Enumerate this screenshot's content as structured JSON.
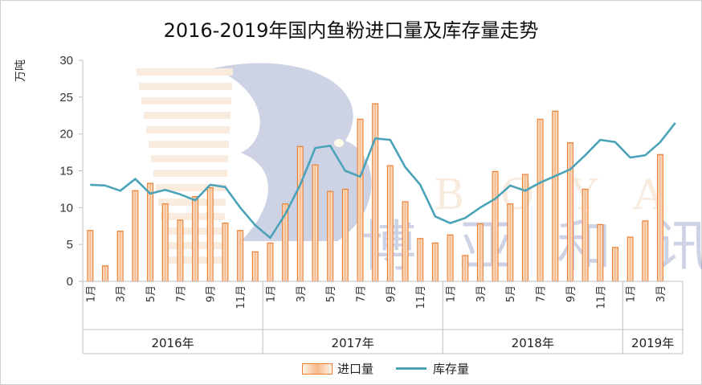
{
  "chart_data": {
    "type": "bar+line",
    "title": "2016-2019年国内鱼粉进口量及库存量走势",
    "ylabel": "万吨",
    "ylim": [
      0,
      30
    ],
    "yticks": [
      0,
      5,
      10,
      15,
      20,
      25,
      30
    ],
    "x_months": [
      "1月",
      "",
      "3月",
      "",
      "5月",
      "",
      "7月",
      "",
      "9月",
      "",
      "11月",
      "",
      "1月",
      "",
      "3月",
      "",
      "5月",
      "",
      "7月",
      "",
      "9月",
      "",
      "11月",
      "",
      "1月",
      "",
      "3月",
      "",
      "5月",
      "",
      "7月",
      "",
      "9月",
      "",
      "11月",
      "",
      "1月",
      "",
      "3月",
      ""
    ],
    "years": [
      {
        "label": "2016年",
        "months": 12
      },
      {
        "label": "2017年",
        "months": 12
      },
      {
        "label": "2018年",
        "months": 12
      },
      {
        "label": "2019年",
        "months": 4
      }
    ],
    "series": [
      {
        "name": "进口量",
        "type": "bar",
        "color": "#ed7d31",
        "values": [
          6.9,
          2.1,
          6.8,
          12.3,
          13.3,
          10.5,
          8.3,
          11.5,
          12.7,
          7.9,
          6.9,
          4.0,
          5.2,
          10.5,
          18.3,
          15.8,
          12.2,
          12.5,
          22.0,
          24.1,
          15.7,
          10.8,
          5.8,
          5.2,
          6.3,
          3.5,
          7.8,
          14.9,
          10.5,
          14.5,
          22.0,
          23.1,
          18.8,
          12.5,
          7.7,
          4.6,
          6.0,
          8.2,
          17.2,
          null
        ]
      },
      {
        "name": "库存量",
        "type": "line",
        "color": "#4aa3b8",
        "values": [
          13.1,
          13.0,
          12.3,
          13.9,
          11.9,
          12.4,
          11.8,
          11.0,
          13.1,
          12.8,
          10.0,
          7.6,
          5.9,
          9.1,
          13.1,
          18.1,
          18.4,
          15.0,
          14.2,
          19.4,
          19.2,
          15.5,
          13.1,
          8.8,
          7.9,
          8.6,
          10.0,
          11.2,
          13.0,
          12.3,
          13.4,
          14.3,
          15.2,
          17.1,
          19.2,
          18.9,
          16.8,
          17.1,
          18.9,
          21.5
        ]
      }
    ]
  },
  "watermark": {
    "letters": "B O Y A R",
    "cn": "博 亚 和 讯"
  }
}
